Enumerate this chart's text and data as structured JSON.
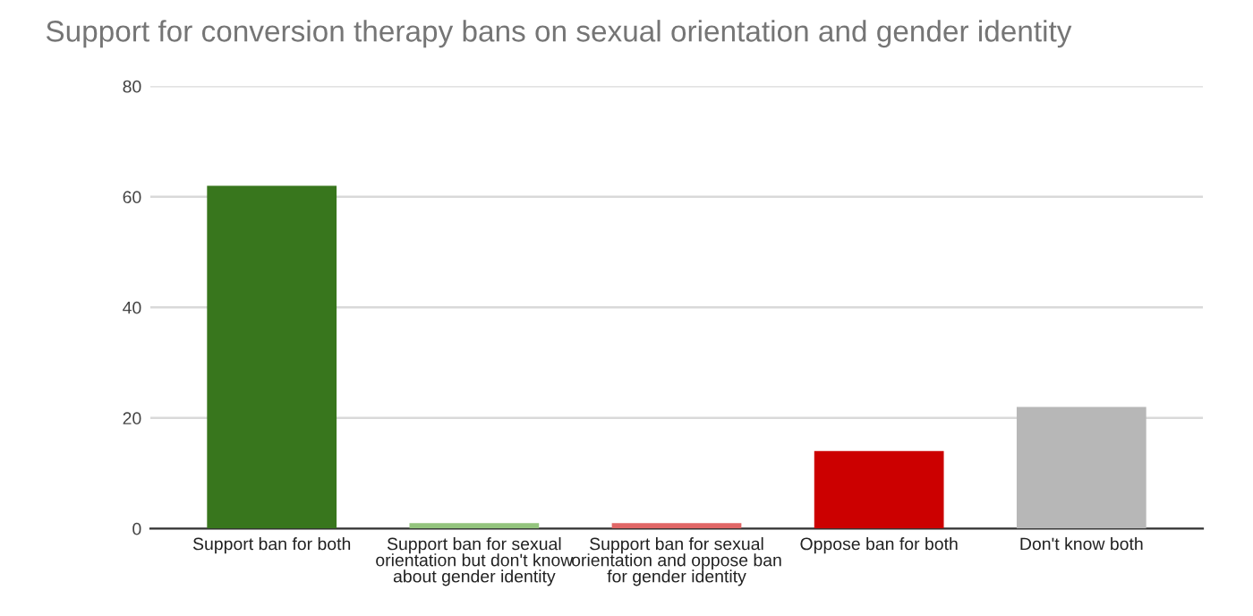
{
  "chart_data": {
    "type": "bar",
    "title": "Support for conversion therapy bans on sexual orientation and gender identity",
    "categories": [
      "Support ban for both",
      "Support ban for sexual\norientation but don't know\nabout gender identity",
      "Support ban for sexual\norientation and oppose ban\nfor gender identity",
      "Oppose ban for both",
      "Don't know both"
    ],
    "values": [
      62,
      1,
      1,
      14,
      22
    ],
    "colors": [
      "#38761d",
      "#93c47d",
      "#e06666",
      "#cc0000",
      "#b7b7b7"
    ],
    "ylim": [
      0,
      80
    ],
    "yticks": [
      0,
      20,
      40,
      60,
      80
    ],
    "grid": "y"
  }
}
